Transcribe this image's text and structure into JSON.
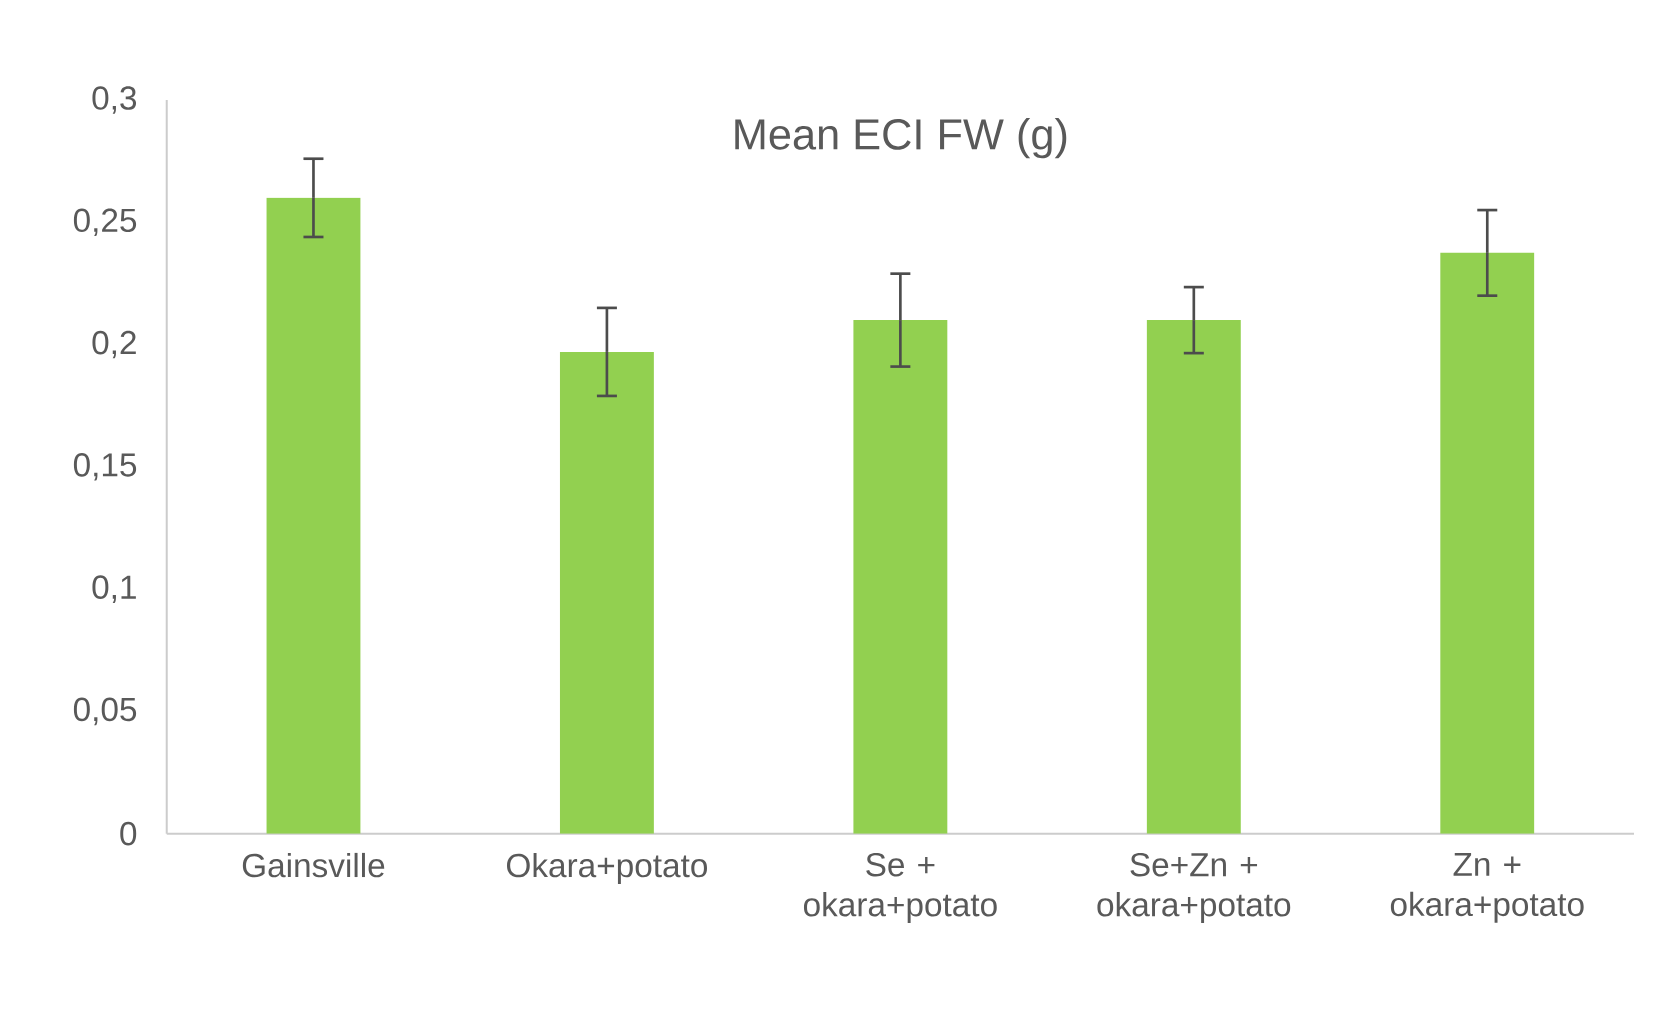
{
  "chart_data": {
    "type": "bar",
    "title": "Mean ECI FW (g)",
    "categories": [
      "Gainsville",
      "Okara+potato",
      "Se + okara+potato",
      "Se+Zn + okara+potato",
      "Zn + okara+potato"
    ],
    "values": [
      0.26,
      0.197,
      0.21,
      0.21,
      0.2375
    ],
    "errors": [
      0.016,
      0.018,
      0.019,
      0.0135,
      0.0175
    ],
    "color": "#92d050",
    "ylim": [
      0,
      0.3
    ],
    "yticks": [
      {
        "value": 0,
        "label": "0"
      },
      {
        "value": 0.05,
        "label": "0,05"
      },
      {
        "value": 0.1,
        "label": "0,1"
      },
      {
        "value": 0.15,
        "label": "0,15"
      },
      {
        "value": 0.2,
        "label": "0,2"
      },
      {
        "value": 0.25,
        "label": "0,25"
      },
      {
        "value": 0.3,
        "label": "0,3"
      }
    ],
    "grid": false,
    "legend": false
  }
}
